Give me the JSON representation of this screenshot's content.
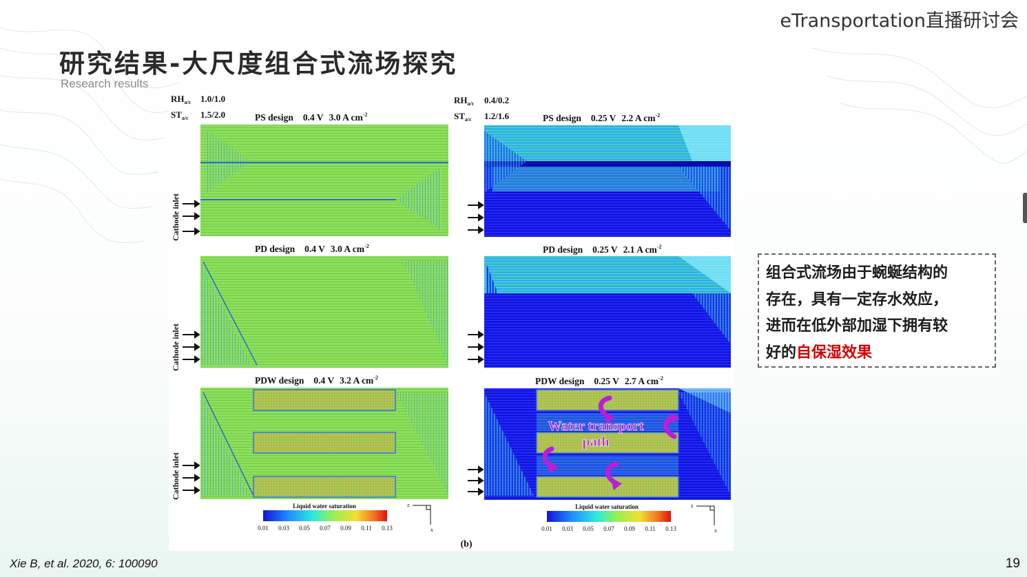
{
  "brand": "eTransportation直播研讨会",
  "title": "研究结果-大尺度组合式流场探究",
  "subtitle": "Research results",
  "figure": {
    "left_conditions": {
      "rh_label": "RH",
      "rh_sub": "a/c",
      "rh_value": "1.0/1.0",
      "st_label": "ST",
      "st_sub": "a/c",
      "st_value": "1.5/2.0"
    },
    "right_conditions": {
      "rh_label": "RH",
      "rh_sub": "a/c",
      "rh_value": "0.4/0.2",
      "st_label": "ST",
      "st_sub": "a/c",
      "st_value": "1.2/1.6"
    },
    "left_panels": [
      {
        "design": "PS design",
        "voltage": "0.4 V",
        "current": "3.0 A cm",
        "exp": "-2"
      },
      {
        "design": "PD design",
        "voltage": "0.4 V",
        "current": "3.0 A cm",
        "exp": "-2"
      },
      {
        "design": "PDW design",
        "voltage": "0.4 V",
        "current": "3.2 A cm",
        "exp": "-2"
      }
    ],
    "right_panels": [
      {
        "design": "PS design",
        "voltage": "0.25 V",
        "current": "2.2 A cm",
        "exp": "-2"
      },
      {
        "design": "PD design",
        "voltage": "0.25 V",
        "current": "2.1 A cm",
        "exp": "-2"
      },
      {
        "design": "PDW design",
        "voltage": "0.25 V",
        "current": "2.7 A cm",
        "exp": "-2"
      }
    ],
    "inlet_label": "Cathode inlet",
    "annotation_line1": "Water transport",
    "annotation_line2": "path",
    "colorbar_title": "Liquid water saturation",
    "colorbar_ticks": [
      "0.01",
      "0.03",
      "0.05",
      "0.07",
      "0.09",
      "0.11",
      "0.13"
    ],
    "axis_z": "z",
    "axis_x": "x",
    "panel_label": "(b)",
    "colors": {
      "green_field": "#8fe05a",
      "blue_field": "#1414e6",
      "magenta_arrow": "#b81fd6"
    }
  },
  "callout": {
    "lines": [
      "组合式流场由于蜿蜒结构的",
      "存在，具有一定存水效应，",
      "进而在低外部加湿下拥有较"
    ],
    "last_prefix": "好的",
    "last_highlight": "自保湿效果"
  },
  "footer": {
    "reference": "Xie B, et al. 2020, 6: 100090",
    "page": "19"
  }
}
